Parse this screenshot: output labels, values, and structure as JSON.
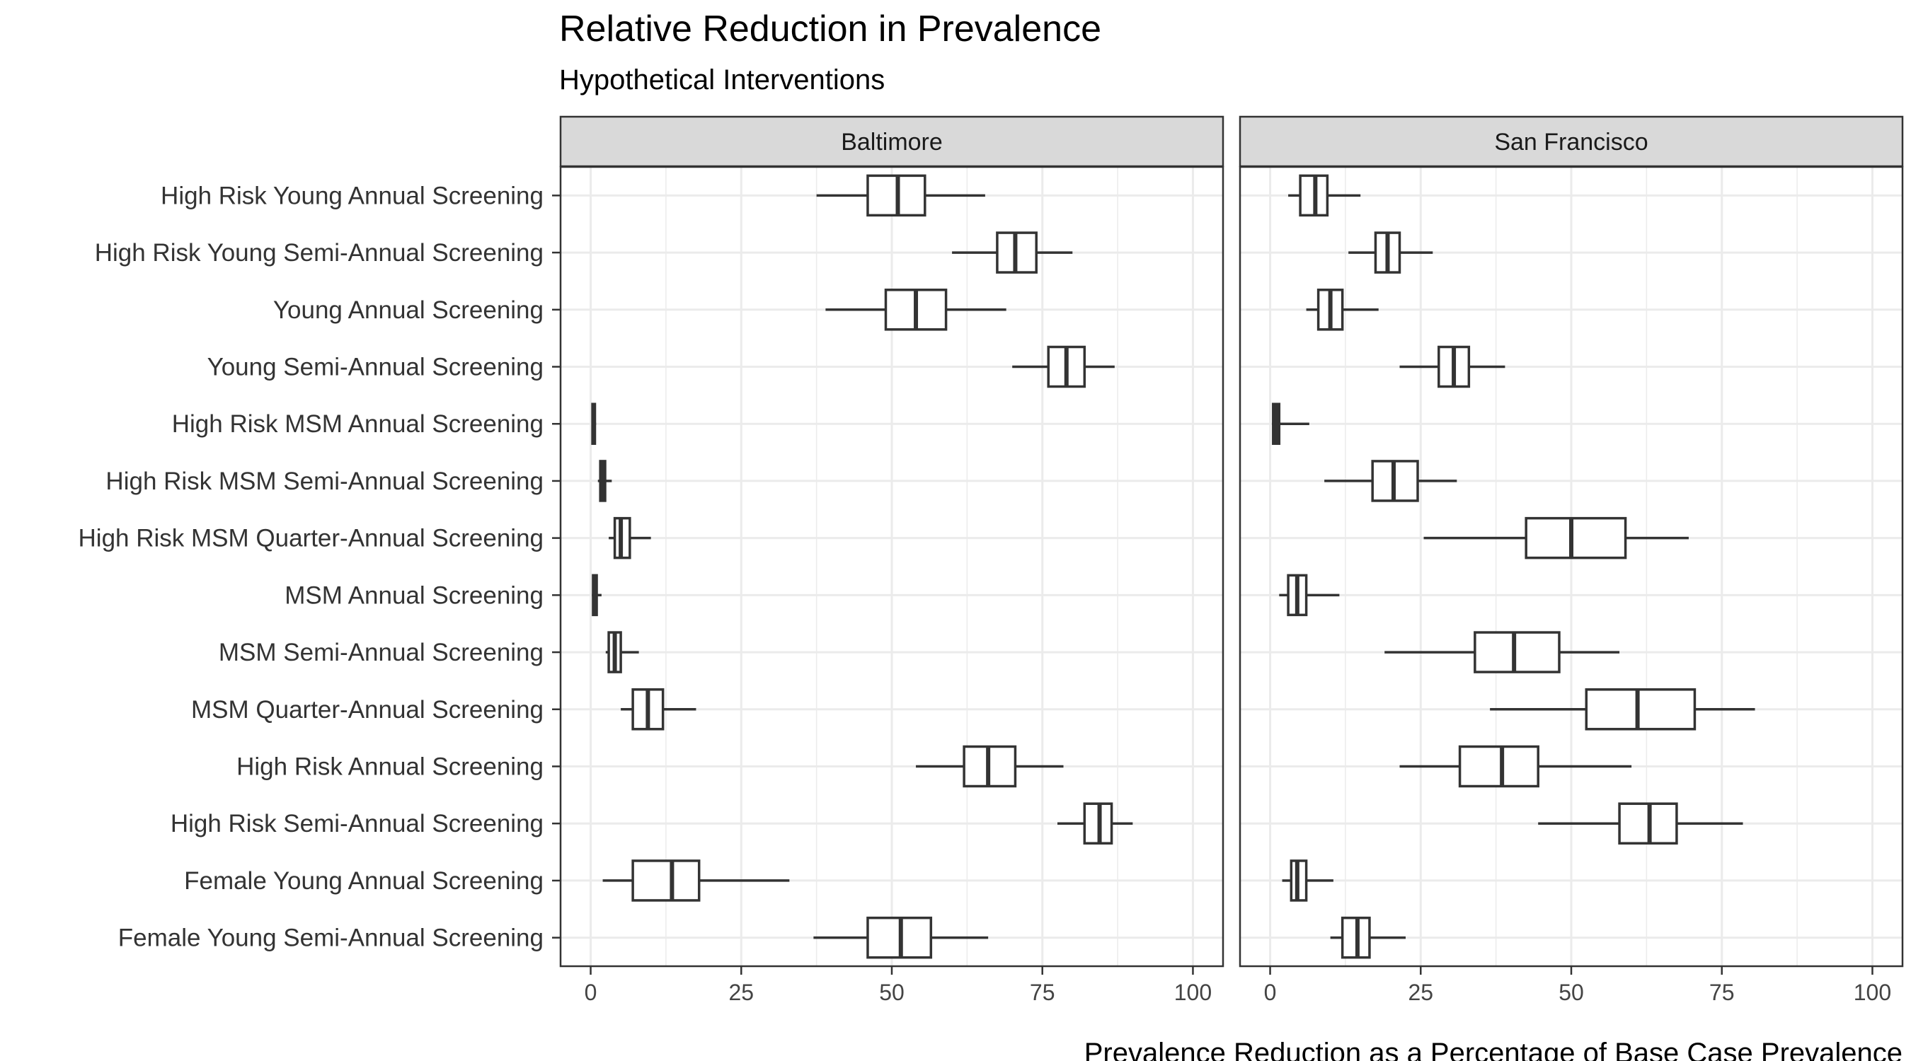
{
  "chart_data": {
    "type": "boxplot",
    "title": "Relative Reduction in Prevalence",
    "subtitle": "Hypothetical Interventions",
    "xlabel": "Prevalence Reduction as a Percentage of Base Case Prevalence",
    "ylabel": "",
    "xlim": [
      -5,
      105
    ],
    "x_ticks": [
      0,
      25,
      50,
      75,
      100
    ],
    "grid": true,
    "colors": {
      "box_stroke": "#333333",
      "strip_fill": "#d9d9d9",
      "panel_border": "#333333",
      "grid": "#ebebeb"
    },
    "categories": [
      "High Risk Young Annual Screening",
      "High Risk Young Semi-Annual Screening",
      "Young Annual Screening",
      "Young Semi-Annual Screening",
      "High Risk MSM Annual Screening",
      "High Risk MSM Semi-Annual Screening",
      "High Risk MSM Quarter-Annual Screening",
      "MSM Annual Screening",
      "MSM Semi-Annual Screening",
      "MSM Quarter-Annual Screening",
      "High Risk Annual Screening",
      "High Risk Semi-Annual Screening",
      "Female Young Annual Screening",
      "Female Young Semi-Annual Screening"
    ],
    "panels": [
      {
        "name": "Baltimore",
        "boxes": [
          {
            "min": 37.5,
            "q1": 46,
            "median": 51,
            "q3": 55.5,
            "max": 65.5
          },
          {
            "min": 60,
            "q1": 67.5,
            "median": 70.5,
            "q3": 74,
            "max": 80
          },
          {
            "min": 39,
            "q1": 49,
            "median": 54,
            "q3": 59,
            "max": 69
          },
          {
            "min": 70,
            "q1": 76,
            "median": 79,
            "q3": 82,
            "max": 87
          },
          {
            "min": 0.2,
            "q1": 0.3,
            "median": 0.5,
            "q3": 0.7,
            "max": 0.9
          },
          {
            "min": 1.2,
            "q1": 1.6,
            "median": 2,
            "q3": 2.4,
            "max": 3.5
          },
          {
            "min": 3,
            "q1": 4,
            "median": 5,
            "q3": 6.5,
            "max": 10
          },
          {
            "min": 0.2,
            "q1": 0.4,
            "median": 0.6,
            "q3": 1,
            "max": 1.8
          },
          {
            "min": 2.5,
            "q1": 3,
            "median": 4,
            "q3": 5,
            "max": 8
          },
          {
            "min": 5,
            "q1": 7,
            "median": 9.5,
            "q3": 12,
            "max": 17.5
          },
          {
            "min": 54,
            "q1": 62,
            "median": 66,
            "q3": 70.5,
            "max": 78.5
          },
          {
            "min": 77.5,
            "q1": 82,
            "median": 84.5,
            "q3": 86.5,
            "max": 90
          },
          {
            "min": 2,
            "q1": 7,
            "median": 13.5,
            "q3": 18,
            "max": 33
          },
          {
            "min": 37,
            "q1": 46,
            "median": 51.5,
            "q3": 56.5,
            "max": 66
          }
        ]
      },
      {
        "name": "San Francisco",
        "boxes": [
          {
            "min": 3,
            "q1": 5,
            "median": 7.5,
            "q3": 9.5,
            "max": 15
          },
          {
            "min": 13,
            "q1": 17.5,
            "median": 19.5,
            "q3": 21.5,
            "max": 27
          },
          {
            "min": 6,
            "q1": 8,
            "median": 10,
            "q3": 12,
            "max": 18
          },
          {
            "min": 21.5,
            "q1": 28,
            "median": 30.5,
            "q3": 33,
            "max": 39
          },
          {
            "min": 0.3,
            "q1": 0.5,
            "median": 1,
            "q3": 1.5,
            "max": 6.5
          },
          {
            "min": 9,
            "q1": 17,
            "median": 20.5,
            "q3": 24.5,
            "max": 31
          },
          {
            "min": 25.5,
            "q1": 42.5,
            "median": 50,
            "q3": 59,
            "max": 69.5
          },
          {
            "min": 1.5,
            "q1": 3,
            "median": 4.5,
            "q3": 6,
            "max": 11.5
          },
          {
            "min": 19,
            "q1": 34,
            "median": 40.5,
            "q3": 48,
            "max": 58
          },
          {
            "min": 36.5,
            "q1": 52.5,
            "median": 61,
            "q3": 70.5,
            "max": 80.5
          },
          {
            "min": 21.5,
            "q1": 31.5,
            "median": 38.5,
            "q3": 44.5,
            "max": 60
          },
          {
            "min": 44.5,
            "q1": 58,
            "median": 63,
            "q3": 67.5,
            "max": 78.5
          },
          {
            "min": 2,
            "q1": 3.5,
            "median": 4.5,
            "q3": 6,
            "max": 10.5
          },
          {
            "min": 10,
            "q1": 12,
            "median": 14.5,
            "q3": 16.5,
            "max": 22.5
          }
        ]
      }
    ]
  }
}
